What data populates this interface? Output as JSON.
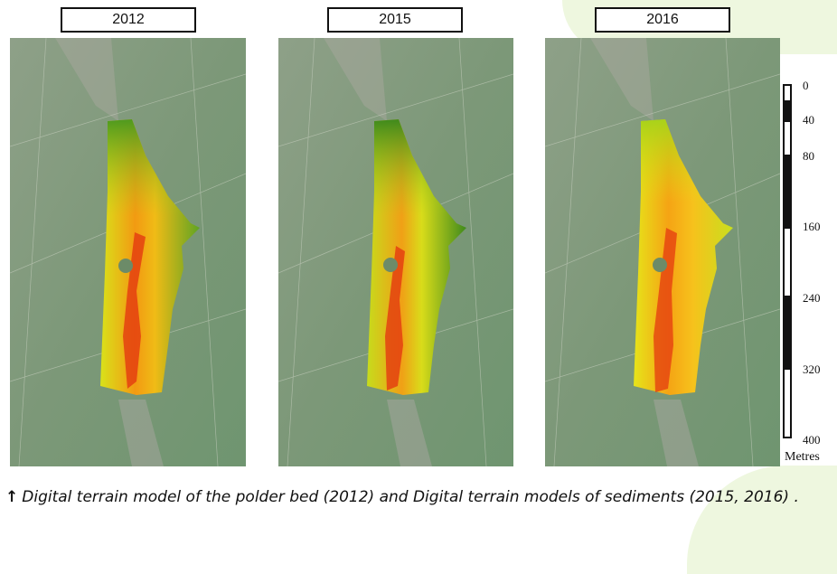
{
  "panels": [
    {
      "year": "2012"
    },
    {
      "year": "2015"
    },
    {
      "year": "2016"
    }
  ],
  "scale": {
    "ticks": [
      "0",
      "40",
      "80",
      "160",
      "240",
      "320",
      "400"
    ],
    "unit": "Metres"
  },
  "caption": {
    "arrow": "↑",
    "text": "Digital terrain model of the polder bed (2012) and Digital terrain models of sediments (2015, 2016) ."
  },
  "colors": {
    "background": "#ffffff",
    "accent_shape": "#eef7df",
    "terrain_low": "#4f9a1e",
    "terrain_mid": "#d8e812",
    "terrain_high": "#e02a10",
    "satellite": "#7f9a78"
  }
}
